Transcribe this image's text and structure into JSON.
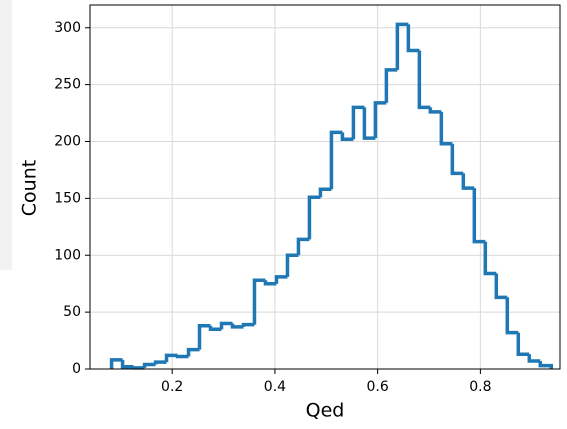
{
  "chart_data": {
    "type": "histogram",
    "x_label": "Qed",
    "y_label": "Count",
    "color": "#1f77b4",
    "grid": true,
    "bins": [
      0.082,
      0.1034,
      0.1248,
      0.1462,
      0.1676,
      0.189,
      0.2104,
      0.2318,
      0.2532,
      0.2746,
      0.296,
      0.3174,
      0.3388,
      0.3602,
      0.3816,
      0.403,
      0.4244,
      0.4458,
      0.4672,
      0.4886,
      0.51,
      0.5314,
      0.5528,
      0.5742,
      0.5956,
      0.617,
      0.6384,
      0.6598,
      0.6812,
      0.7026,
      0.724,
      0.7454,
      0.7668,
      0.7882,
      0.8096,
      0.831,
      0.8524,
      0.8738,
      0.8952,
      0.9166,
      0.938
    ],
    "values": [
      8,
      2,
      1,
      4,
      6,
      12,
      11,
      17,
      38,
      35,
      40,
      37,
      39,
      78,
      75,
      81,
      100,
      114,
      151,
      158,
      208,
      202,
      230,
      203,
      234,
      263,
      303,
      280,
      230,
      226,
      198,
      172,
      159,
      112,
      84,
      63,
      32,
      13,
      7,
      3
    ],
    "xlim": [
      0.04,
      0.955
    ],
    "ylim": [
      0,
      320
    ],
    "xticks": [
      0.2,
      0.4,
      0.6,
      0.8
    ],
    "yticks": [
      0,
      50,
      100,
      150,
      200,
      250,
      300
    ]
  }
}
